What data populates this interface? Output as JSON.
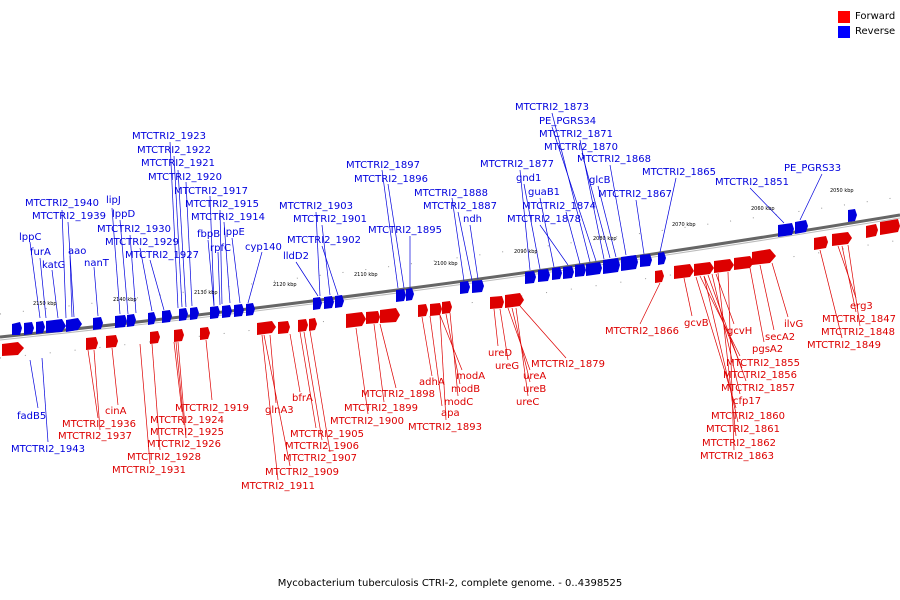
{
  "caption": "Mycobacterium tuberculosis CTRI-2, complete genome. - 0..4398525",
  "legend": [
    {
      "label": "Forward",
      "color": "#ff0000"
    },
    {
      "label": "Reverse",
      "color": "#0000ff"
    }
  ],
  "colors": {
    "forward": "#dd0000",
    "reverse": "#0000dd",
    "backbone": "#666666"
  },
  "scale_ticks": [
    "2150 kbp",
    "2140 kbp",
    "2130 kbp",
    "2120 kbp",
    "2110 kbp",
    "2100 kbp",
    "2090 kbp",
    "2080 kbp",
    "2070 kbp",
    "2060 kbp",
    "2050 kbp"
  ],
  "reverse_labels": [
    "lppC",
    "furA",
    "katG",
    "aao",
    "nanT",
    "MTCTRI2_1940",
    "MTCTRI2_1939",
    "lipJ",
    "lppD",
    "MTCTRI2_1930",
    "MTCTRI2_1929",
    "MTCTRI2_1927",
    "MTCTRI2_1923",
    "MTCTRI2_1922",
    "MTCTRI2_1921",
    "MTCTRI2_1920",
    "MTCTRI2_1917",
    "MTCTRI2_1915",
    "MTCTRI2_1914",
    "fbpB",
    "rpfC",
    "lppE",
    "cyp140",
    "MTCTRI2_1903",
    "MTCTRI2_1901",
    "MTCTRI2_1902",
    "lldD2",
    "MTCTRI2_1897",
    "MTCTRI2_1896",
    "MTCTRI2_1895",
    "MTCTRI2_1888",
    "MTCTRI2_1887",
    "ndh",
    "MTCTRI2_1877",
    "gnd1",
    "guaB1",
    "MTCTRI2_1878",
    "MTCTRI2_1874",
    "MTCTRI2_1873",
    "PE_PGRS34",
    "MTCTRI2_1871",
    "MTCTRI2_1870",
    "MTCTRI2_1868",
    "glcB",
    "MTCTRI2_1867",
    "MTCTRI2_1865",
    "MTCTRI2_1851",
    "PE_PGRS33",
    "fadB5",
    "MTCTRI2_1943"
  ],
  "forward_labels": [
    "cinA",
    "MTCTRI2_1936",
    "MTCTRI2_1937",
    "MTCTRI2_1919",
    "MTCTRI2_1924",
    "MTCTRI2_1925",
    "MTCTRI2_1926",
    "MTCTRI2_1928",
    "MTCTRI2_1931",
    "glnA3",
    "bfrA",
    "MTCTRI2_1905",
    "MTCTRI2_1906",
    "MTCTRI2_1907",
    "MTCTRI2_1909",
    "MTCTRI2_1911",
    "MTCTRI2_1898",
    "MTCTRI2_1899",
    "MTCTRI2_1900",
    "adhA",
    "apa",
    "modA",
    "modB",
    "modC",
    "MTCTRI2_1893",
    "ureD",
    "ureG",
    "ureA",
    "ureB",
    "ureC",
    "MTCTRI2_1879",
    "MTCTRI2_1866",
    "gcvB",
    "gcvH",
    "secA2",
    "pgsA2",
    "ilvG",
    "MTCTRI2_1855",
    "MTCTRI2_1856",
    "MTCTRI2_1857",
    "cfp17",
    "MTCTRI2_1860",
    "MTCTRI2_1861",
    "MTCTRI2_1862",
    "MTCTRI2_1863",
    "erg3",
    "MTCTRI2_1847",
    "MTCTRI2_1848",
    "MTCTRI2_1849"
  ]
}
